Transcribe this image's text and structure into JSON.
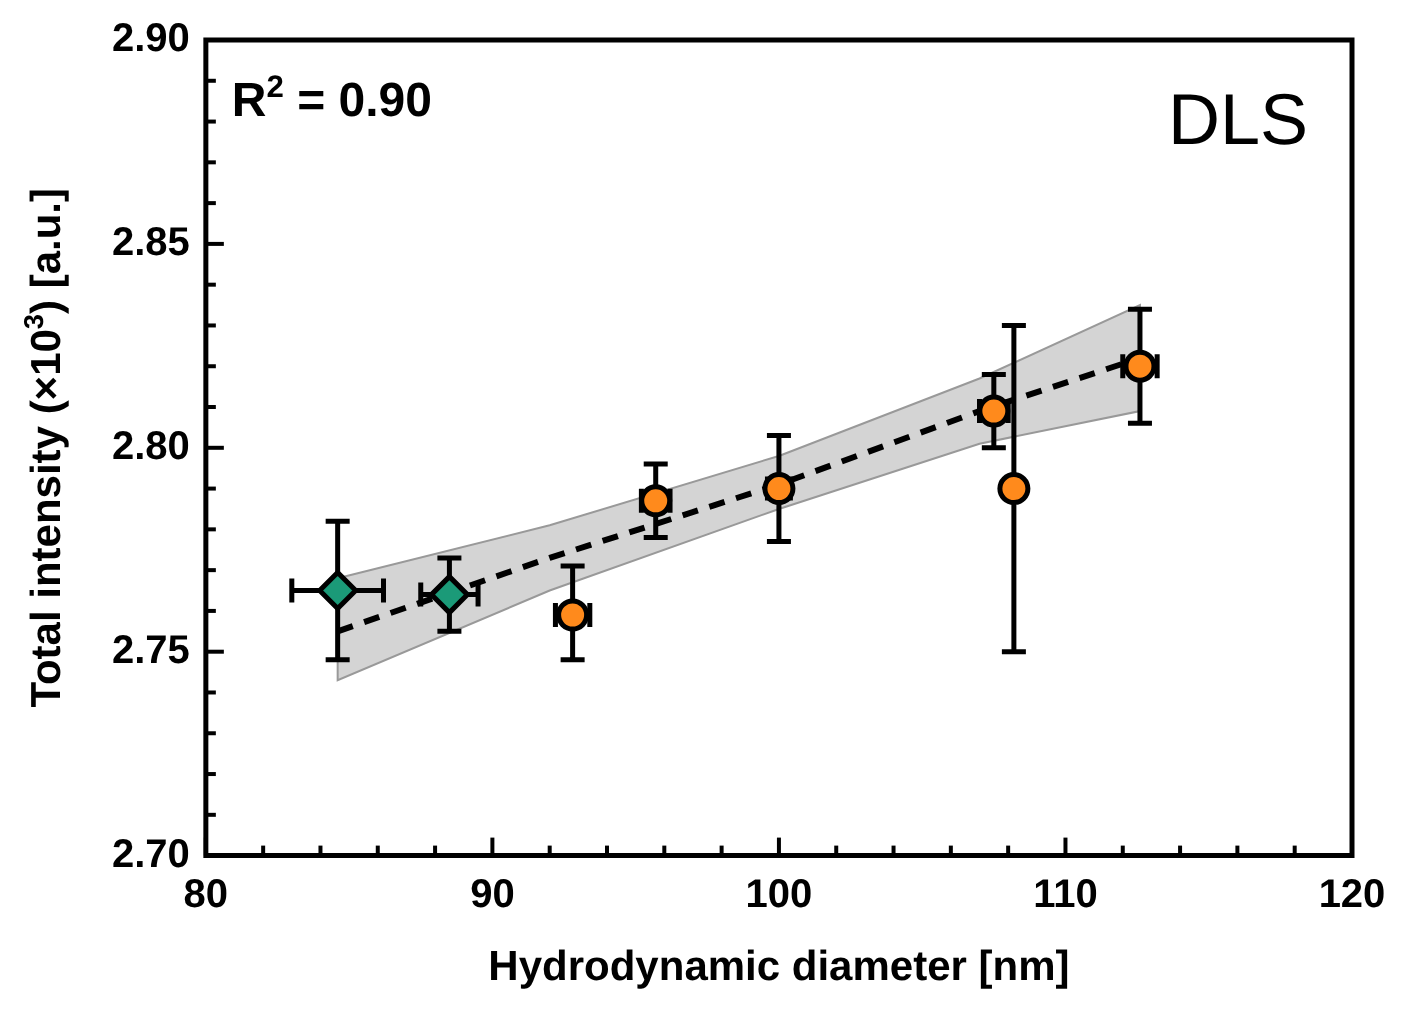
{
  "chart_data": {
    "type": "scatter",
    "xlabel": "Hydrodynamic diameter [nm]",
    "ylabel": "Total intensity (×10$^{3}$) [a.u.]",
    "xlim": [
      80,
      120
    ],
    "ylim": [
      2.7,
      2.9
    ],
    "xticks": [
      80,
      {
        "value": 82,
        "label": null
      },
      {
        "value": 84,
        "label": null
      },
      {
        "value": 86,
        "label": null
      },
      {
        "value": 88,
        "label": null
      },
      90,
      {
        "value": 92,
        "label": null
      },
      {
        "value": 94,
        "label": null
      },
      {
        "value": 96,
        "label": null
      },
      {
        "value": 98,
        "label": null
      },
      100,
      {
        "value": 102,
        "label": null
      },
      {
        "value": 104,
        "label": null
      },
      {
        "value": 106,
        "label": null
      },
      {
        "value": 108,
        "label": null
      },
      110,
      {
        "value": 112,
        "label": null
      },
      {
        "value": 114,
        "label": null
      },
      {
        "value": 116,
        "label": null
      },
      {
        "value": 118,
        "label": null
      },
      120
    ],
    "yticks": [
      {
        "value": 2.7,
        "label": "2.70"
      },
      {
        "value": 2.71,
        "label": null
      },
      {
        "value": 2.72,
        "label": null
      },
      {
        "value": 2.73,
        "label": null
      },
      {
        "value": 2.74,
        "label": null
      },
      {
        "value": 2.75,
        "label": "2.75"
      },
      {
        "value": 2.76,
        "label": null
      },
      {
        "value": 2.77,
        "label": null
      },
      {
        "value": 2.78,
        "label": null
      },
      {
        "value": 2.79,
        "label": null
      },
      {
        "value": 2.8,
        "label": "2.80"
      },
      {
        "value": 2.81,
        "label": null
      },
      {
        "value": 2.82,
        "label": null
      },
      {
        "value": 2.83,
        "label": null
      },
      {
        "value": 2.84,
        "label": null
      },
      {
        "value": 2.85,
        "label": "2.85"
      },
      {
        "value": 2.86,
        "label": null
      },
      {
        "value": 2.87,
        "label": null
      },
      {
        "value": 2.88,
        "label": null
      },
      {
        "value": 2.89,
        "label": null
      },
      {
        "value": 2.9,
        "label": "2.90"
      }
    ],
    "series": [
      {
        "type": "line",
        "color": "#000000",
        "line_style": "dashed",
        "marker": "none",
        "x": [
          84.6,
          92,
          100,
          107,
          112.6
        ],
        "values": [
          2.755,
          2.773,
          2.791,
          2.809,
          2.822
        ],
        "lower": [
          2.743,
          2.765,
          2.785,
          2.801,
          2.809
        ],
        "upper": [
          2.768,
          2.781,
          2.798,
          2.817,
          2.835
        ]
      },
      {
        "type": "scatter",
        "color": "#1b9a78",
        "marker": "diamond",
        "x": [
          84.6,
          88.5
        ],
        "values": [
          2.765,
          2.764
        ],
        "errors": [
          [
            2.748,
            2.782
          ],
          [
            2.755,
            2.773
          ]
        ],
        "xerrors": [
          [
            83.0,
            86.2
          ],
          [
            87.5,
            89.5
          ]
        ]
      },
      {
        "type": "scatter",
        "color": "#ff8a1c",
        "marker": "circle",
        "x": [
          92.8,
          95.7,
          100.0,
          107.5,
          108.2,
          112.6
        ],
        "values": [
          2.759,
          2.787,
          2.79,
          2.809,
          2.79,
          2.82
        ],
        "errors": [
          [
            2.748,
            2.771
          ],
          [
            2.778,
            2.796
          ],
          [
            2.777,
            2.803
          ],
          [
            2.8,
            2.818
          ],
          [
            2.75,
            2.83
          ],
          [
            2.806,
            2.834
          ]
        ],
        "xerrors": [
          [
            92.2,
            93.4
          ],
          [
            95.2,
            96.2
          ],
          [
            99.6,
            100.4
          ],
          [
            107.0,
            108.0
          ],
          null,
          [
            112.0,
            113.2
          ]
        ]
      }
    ],
    "annotations": [
      "R$^{2}$ = 0.90",
      "DLS"
    ]
  }
}
